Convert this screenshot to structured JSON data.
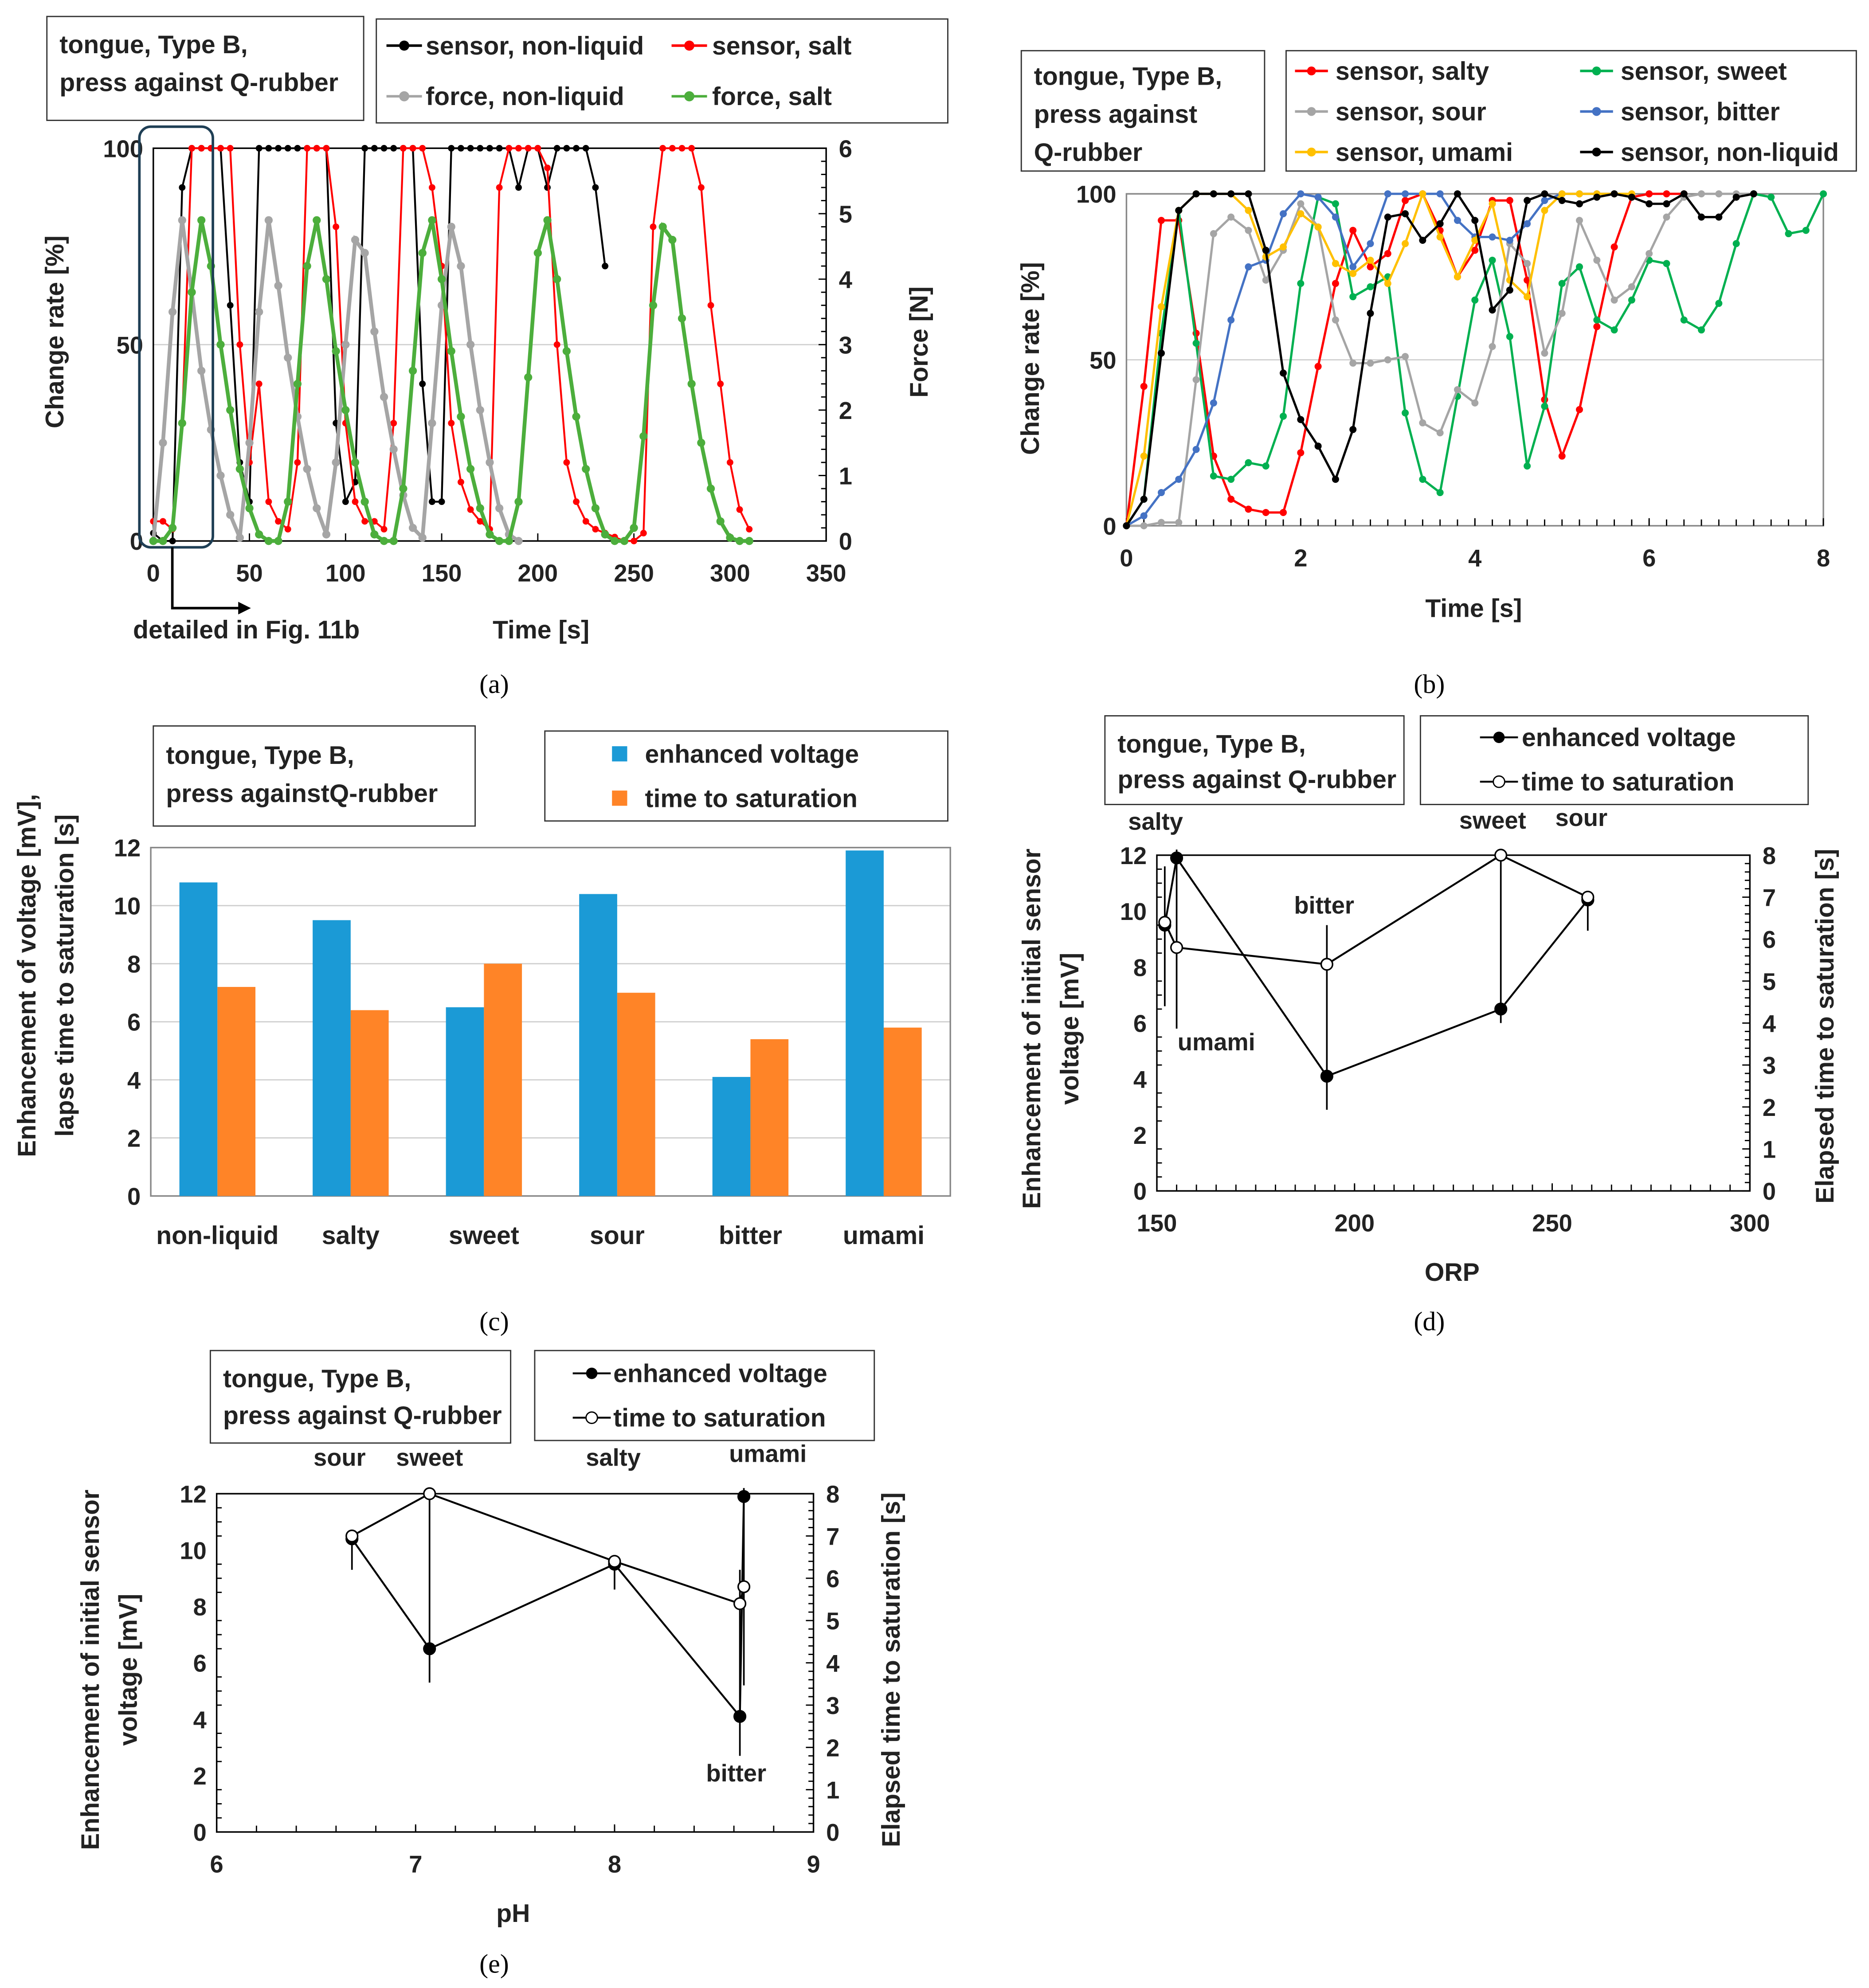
{
  "chart_data": [
    {
      "panel": "a",
      "type": "line",
      "caption": "(a)",
      "title_box": [
        "tongue, Type B,",
        "press against Q-rubber"
      ],
      "xlabel": "Time   [s]",
      "ylabel": "Change rate  [%]",
      "y2label": "Force  [N]",
      "annotation": "detailed in Fig. 11b",
      "xlim": [
        0,
        350
      ],
      "xticks": [
        0,
        50,
        100,
        150,
        200,
        250,
        300,
        350
      ],
      "ylim": [
        0,
        100
      ],
      "yticks": [
        0,
        50,
        100
      ],
      "y2lim": [
        0,
        6
      ],
      "y2ticks": [
        0,
        1,
        2,
        3,
        4,
        5,
        6
      ],
      "grid": "horizontal at 50",
      "series": [
        {
          "name": "sensor, non-liquid",
          "color": "#000000",
          "axis": "left",
          "x_start": 0,
          "x_step": 5,
          "values": [
            2,
            0,
            0,
            90,
            100,
            100,
            100,
            100,
            60,
            20,
            10,
            100,
            100,
            100,
            100,
            100,
            100,
            100,
            100,
            30,
            10,
            15,
            100,
            100,
            100,
            100,
            100,
            100,
            40,
            10,
            10,
            100,
            100,
            100,
            100,
            100,
            100,
            100,
            90,
            100,
            100,
            90,
            100,
            100,
            100,
            100,
            90,
            70
          ]
        },
        {
          "name": "sensor, salt",
          "color": "#ff0000",
          "axis": "left",
          "x_start": 0,
          "x_step": 5,
          "values": [
            5,
            5,
            3,
            30,
            100,
            100,
            100,
            100,
            100,
            50,
            20,
            40,
            10,
            5,
            3,
            20,
            100,
            100,
            100,
            80,
            30,
            10,
            5,
            5,
            3,
            30,
            100,
            100,
            100,
            90,
            70,
            30,
            15,
            8,
            5,
            3,
            90,
            100,
            100,
            100,
            100,
            95,
            50,
            20,
            10,
            5,
            3,
            2,
            1,
            0,
            0,
            2,
            80,
            100,
            100,
            100,
            100,
            90,
            60,
            40,
            20,
            8,
            3
          ]
        },
        {
          "name": "force, non-liquid",
          "color": "#a5a5a5",
          "axis": "right",
          "x_start": 0,
          "x_step": 5,
          "values": [
            0,
            1.5,
            3.5,
            4.9,
            3.8,
            2.6,
            1.7,
            1.0,
            0.4,
            0.05,
            1.5,
            3.5,
            4.9,
            3.9,
            2.8,
            1.9,
            1.1,
            0.5,
            0.1,
            1.2,
            3.0,
            4.6,
            4.4,
            3.2,
            2.2,
            1.4,
            0.7,
            0.2,
            0.05,
            1.8,
            3.6,
            4.8,
            4.2,
            3.0,
            2.0,
            1.2,
            0.5,
            0.1,
            0
          ]
        },
        {
          "name": "force, salt",
          "color": "#4cae3c",
          "axis": "right",
          "x_start": 0,
          "x_step": 5,
          "values": [
            0,
            0,
            0.2,
            1.8,
            3.8,
            4.9,
            4.2,
            3.0,
            2.0,
            1.1,
            0.5,
            0.1,
            0,
            0,
            0.6,
            2.4,
            4.2,
            4.9,
            4.0,
            2.9,
            2.0,
            1.2,
            0.6,
            0.1,
            0,
            0,
            0.8,
            2.6,
            4.4,
            4.9,
            4.0,
            2.9,
            1.9,
            1.1,
            0.5,
            0.1,
            0,
            0,
            0.6,
            2.5,
            4.4,
            4.9,
            4.0,
            2.9,
            1.9,
            1.1,
            0.5,
            0.1,
            0,
            0,
            0.2,
            1.6,
            3.6,
            4.8,
            4.6,
            3.4,
            2.4,
            1.5,
            0.8,
            0.3,
            0.05,
            0,
            0
          ]
        }
      ]
    },
    {
      "panel": "b",
      "type": "line",
      "caption": "(b)",
      "title_box": [
        "tongue, Type B,",
        "press against",
        "Q-rubber"
      ],
      "xlabel": "Time   [s]",
      "ylabel": "Change rate  [%]",
      "xlim": [
        0,
        8
      ],
      "xticks": [
        0,
        2,
        4,
        6,
        8
      ],
      "ylim": [
        0,
        100
      ],
      "yticks": [
        0,
        50,
        100
      ],
      "grid": "horizontal at 50",
      "series": [
        {
          "name": "sensor, salty",
          "color": "#ff0000",
          "x_start": 0,
          "x_step": 0.2,
          "values": [
            0,
            42,
            92,
            92,
            58,
            21,
            8,
            5,
            4,
            4,
            22,
            48,
            73,
            89,
            78,
            82,
            98,
            100,
            89,
            75,
            83,
            98,
            98,
            74,
            38,
            21,
            35,
            60,
            84,
            99,
            100,
            100,
            100
          ]
        },
        {
          "name": "sensor, sweet",
          "color": "#00b050",
          "x_start": 0,
          "x_step": 0.2,
          "values": [
            0,
            8,
            58,
            95,
            55,
            15,
            14,
            19,
            18,
            33,
            73,
            99,
            97,
            69,
            72,
            75,
            34,
            14,
            10,
            39,
            68,
            80,
            57,
            18,
            36,
            73,
            78,
            62,
            59,
            68,
            80,
            79,
            62,
            59,
            67,
            85,
            100,
            99,
            88,
            89,
            100
          ]
        },
        {
          "name": "sensor, sour",
          "color": "#a5a5a5",
          "x_start": 0,
          "x_step": 0.2,
          "values": [
            0,
            0,
            1,
            1,
            44,
            88,
            93,
            89,
            74,
            83,
            97,
            90,
            62,
            49,
            49,
            50,
            51,
            31,
            28,
            41,
            37,
            54,
            85,
            79,
            52,
            64,
            92,
            80,
            68,
            72,
            82,
            93,
            99,
            100,
            100,
            100,
            100
          ]
        },
        {
          "name": "sensor, bitter",
          "color": "#4472c4",
          "x_start": 0,
          "x_step": 0.2,
          "values": [
            0,
            3,
            10,
            14,
            23,
            37,
            62,
            78,
            80,
            94,
            100,
            99,
            93,
            78,
            85,
            100,
            100,
            100,
            100,
            92,
            87,
            87,
            86,
            91,
            98,
            100,
            100,
            100,
            100
          ]
        },
        {
          "name": "sensor, umami",
          "color": "#ffc000",
          "x_start": 0,
          "x_step": 0.2,
          "values": [
            0,
            21,
            66,
            95,
            100,
            100,
            100,
            95,
            81,
            84,
            94,
            90,
            79,
            76,
            80,
            73,
            85,
            100,
            87,
            75,
            86,
            97,
            74,
            69,
            95,
            100,
            100,
            100,
            100,
            100
          ]
        },
        {
          "name": "sensor, non-liquid",
          "color": "#000000",
          "x_start": 0,
          "x_step": 0.2,
          "values": [
            0,
            8,
            52,
            95,
            100,
            100,
            100,
            100,
            83,
            46,
            32,
            24,
            14,
            29,
            64,
            93,
            94,
            86,
            91,
            100,
            92,
            65,
            71,
            98,
            100,
            98,
            97,
            99,
            100,
            99,
            97,
            97,
            100,
            93,
            93,
            99,
            100
          ]
        }
      ]
    },
    {
      "panel": "c",
      "type": "bar",
      "caption": "(c)",
      "title_box": [
        "tongue, Type B,",
        "press againstQ-rubber"
      ],
      "ylabel": [
        "Enhancement of voltage  [mV],",
        "lapse time to saturation  [s]"
      ],
      "categories": [
        "non-liquid",
        "salty",
        "sweet",
        "sour",
        "bitter",
        "umami"
      ],
      "ylim": [
        0,
        12
      ],
      "yticks": [
        0,
        2,
        4,
        6,
        8,
        10,
        12
      ],
      "grid": "horizontal",
      "series": [
        {
          "name": "enhanced voltage",
          "color": "#1b9ad6",
          "values": [
            10.8,
            9.5,
            6.5,
            10.4,
            4.1,
            11.9
          ]
        },
        {
          "name": "time to saturation",
          "color": "#ff8427",
          "values": [
            7.2,
            6.4,
            8.0,
            7.0,
            5.4,
            5.8
          ]
        }
      ]
    },
    {
      "panel": "d",
      "type": "line",
      "caption": "(d)",
      "title_box": [
        "tongue, Type B,",
        "press against Q-rubber"
      ],
      "xlabel": "ORP",
      "ylabel": [
        "Enhancement of initial sensor",
        "voltage  [mV]"
      ],
      "y2label": "Elapsed time to saturation  [s]",
      "xlim": [
        150,
        300
      ],
      "xticks": [
        150,
        200,
        250,
        300
      ],
      "ylim": [
        0,
        12
      ],
      "yticks": [
        0,
        2,
        4,
        6,
        8,
        10,
        12
      ],
      "y2lim": [
        0,
        8
      ],
      "y2ticks": [
        0,
        1,
        2,
        3,
        4,
        5,
        6,
        7,
        8
      ],
      "point_labels": [
        "salty",
        "umami",
        "bitter",
        "sweet",
        "sour"
      ],
      "x": [
        152,
        155,
        193,
        237,
        259
      ],
      "error_bars_mV": [
        [
          6.6,
          11.6
        ],
        [
          5.8,
          12.2
        ],
        [
          2.9,
          9.5
        ],
        [
          6.0,
          12.0
        ],
        [
          9.3,
          10.6
        ]
      ],
      "series": [
        {
          "name": "enhanced voltage",
          "axis": "left",
          "marker": "filled",
          "values": [
            9.5,
            11.9,
            4.1,
            6.5,
            10.4
          ]
        },
        {
          "name": "time to saturation",
          "axis": "right",
          "marker": "hollow",
          "values": [
            6.4,
            5.8,
            5.4,
            8.0,
            7.0
          ]
        }
      ]
    },
    {
      "panel": "e",
      "type": "line",
      "caption": "(e)",
      "title_box": [
        "tongue, Type B,",
        "press against Q-rubber"
      ],
      "xlabel": "pH",
      "ylabel": [
        "Enhancement of initial sensor",
        "voltage  [mV]"
      ],
      "y2label": "Elapsed time to saturation  [s]",
      "xlim": [
        6,
        9
      ],
      "xticks": [
        6,
        7,
        8,
        9
      ],
      "ylim": [
        0,
        12
      ],
      "yticks": [
        0,
        2,
        4,
        6,
        8,
        10,
        12
      ],
      "y2lim": [
        0,
        8
      ],
      "y2ticks": [
        0,
        1,
        2,
        3,
        4,
        5,
        6,
        7,
        8
      ],
      "point_labels": [
        "sour",
        "sweet",
        "salty",
        "bitter",
        "umami"
      ],
      "x": [
        6.68,
        7.07,
        8.0,
        8.63,
        8.65
      ],
      "error_bars_mV": [
        [
          9.3,
          10.6
        ],
        [
          5.3,
          12.0
        ],
        [
          8.6,
          9.6
        ],
        [
          2.7,
          9.3
        ],
        [
          5.2,
          12.2
        ]
      ],
      "series": [
        {
          "name": "enhanced voltage",
          "axis": "left",
          "marker": "filled",
          "values": [
            10.4,
            6.5,
            9.5,
            4.1,
            11.9
          ]
        },
        {
          "name": "time to saturation",
          "axis": "right",
          "marker": "hollow",
          "values": [
            7.0,
            8.0,
            6.4,
            5.4,
            5.8
          ]
        }
      ]
    }
  ]
}
